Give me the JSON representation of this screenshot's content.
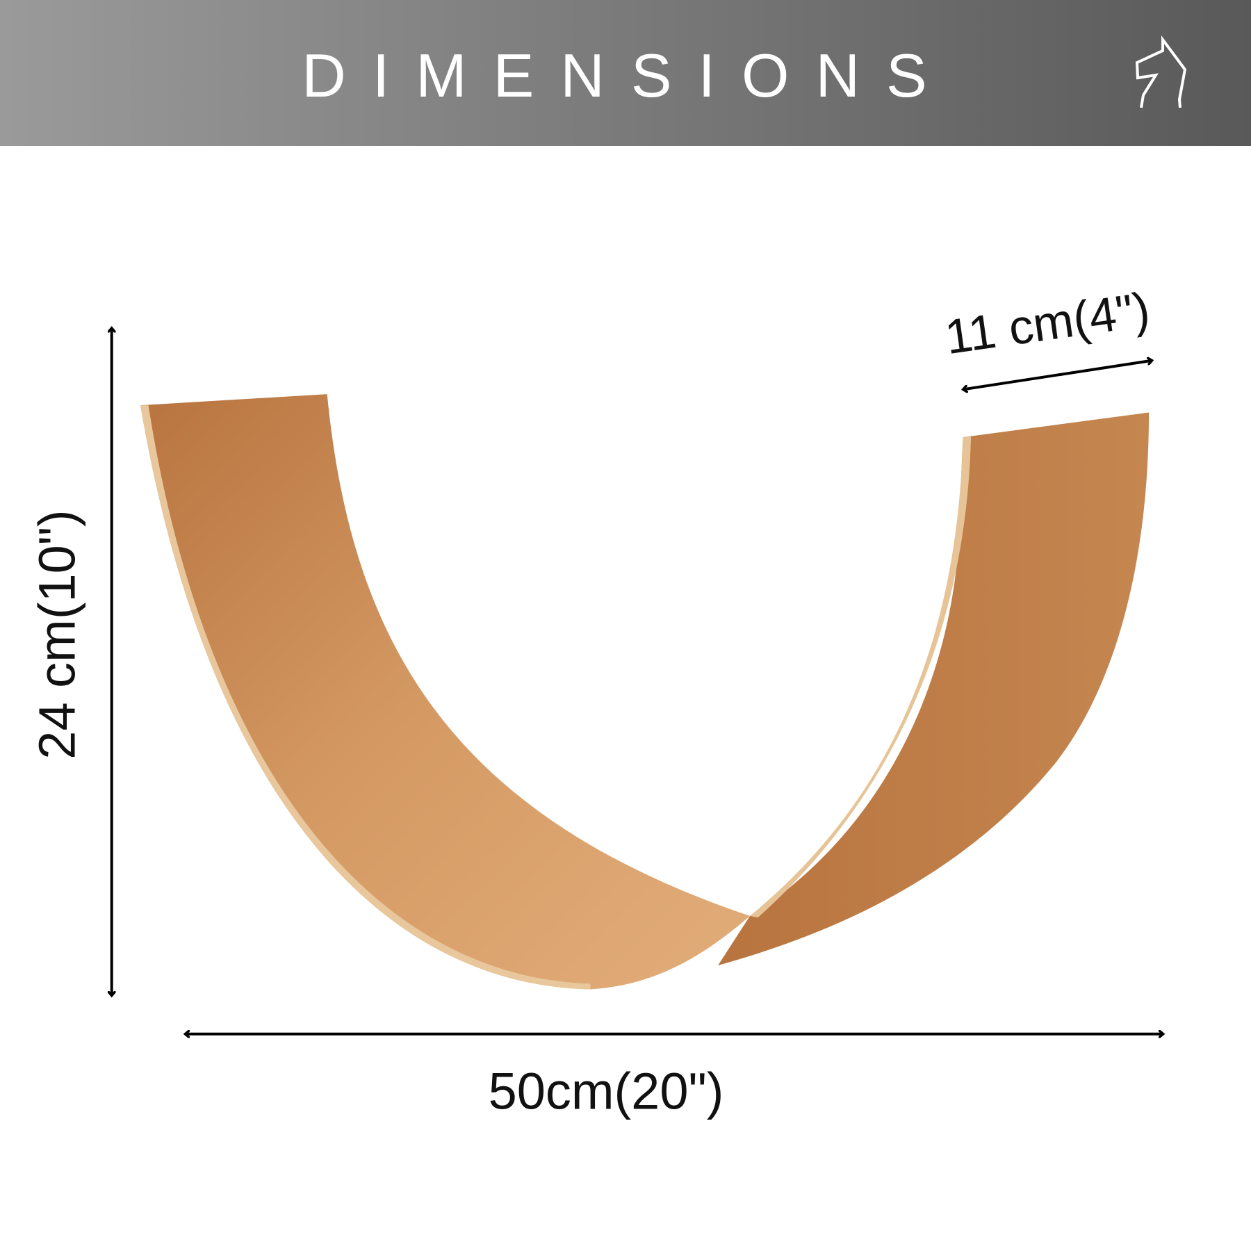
{
  "header": {
    "title": "DIMENSIONS",
    "background_color": "#7a7a7a",
    "logo_icon": "horse-head-logo"
  },
  "dimensions": {
    "width": "50cm(20\")",
    "height": "24 cm(10\")",
    "depth": "11 cm(4\")"
  },
  "product": {
    "wood_color": "#c98a55"
  }
}
